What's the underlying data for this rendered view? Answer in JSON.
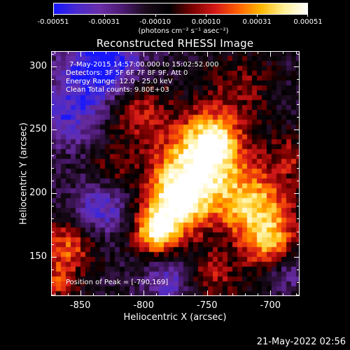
{
  "colorbar": {
    "tick_labels": [
      "-0.00051",
      "-0.00031",
      "-0.00010",
      "0.00010",
      "0.00031",
      "0.00051"
    ],
    "units_text": "(photons cm⁻² s⁻¹ asec⁻²)",
    "gradient": [
      "#1616ff",
      "#4a2acd",
      "#6a2ea8",
      "#4b1a70",
      "#1a0a1a",
      "#000000",
      "#7a0000",
      "#d41818",
      "#ff6000",
      "#ffb800",
      "#fff098",
      "#ffffff"
    ]
  },
  "title": "Reconstructed RHESSI Image",
  "info": {
    "time_range": "7-May-2015 14:57:00.000 to 15:02:52.000",
    "detectors": "Detectors: 3F 5F 6F 7F 8F 9F, Att 0",
    "energy_range": "Energy Range: 12.0 - 25.0 keV",
    "method_counts": "Clean     Total counts: 9.80E+03",
    "peak_position": "Position of Peak = [-790,169]"
  },
  "axes": {
    "xlabel": "Heliocentric X (arcsec)",
    "ylabel": "Heliocentric Y (arcsec)",
    "x_tick_labels": [
      "-850",
      "-800",
      "-750",
      "-700"
    ],
    "y_tick_labels": [
      "300",
      "250",
      "200",
      "150"
    ],
    "xlim": [
      -873,
      -677
    ],
    "ylim": [
      119,
      312
    ],
    "x_ticks": [
      -850,
      -800,
      -750,
      -700
    ],
    "y_ticks": [
      300,
      250,
      200,
      150
    ]
  },
  "timestamp": "21-May-2022 02:56",
  "chart_data": {
    "type": "heatmap",
    "title": "Reconstructed RHESSI Image",
    "xlabel": "Heliocentric X (arcsec)",
    "ylabel": "Heliocentric Y (arcsec)",
    "xlim": [
      -873,
      -677
    ],
    "ylim": [
      119,
      312
    ],
    "value_range": [
      -0.00051,
      0.00051
    ],
    "peak": [
      -790,
      169
    ],
    "sources": [
      {
        "x": -758,
        "y": 218,
        "amp": 1.0,
        "r": 24
      },
      {
        "x": -745,
        "y": 242,
        "amp": 0.85,
        "r": 16
      },
      {
        "x": -776,
        "y": 191,
        "amp": 0.9,
        "r": 18
      },
      {
        "x": -790,
        "y": 169,
        "amp": 1.0,
        "r": 12
      },
      {
        "x": -712,
        "y": 190,
        "amp": 0.9,
        "r": 20
      },
      {
        "x": -700,
        "y": 160,
        "amp": 0.7,
        "r": 15
      },
      {
        "x": -806,
        "y": 266,
        "amp": 0.55,
        "r": 18
      },
      {
        "x": -860,
        "y": 158,
        "amp": 0.65,
        "r": 15
      },
      {
        "x": -868,
        "y": 130,
        "amp": 0.5,
        "r": 10
      },
      {
        "x": -825,
        "y": 220,
        "amp": 0.3,
        "r": 12
      },
      {
        "x": -725,
        "y": 285,
        "amp": 0.35,
        "r": 18
      },
      {
        "x": -685,
        "y": 230,
        "amp": 0.4,
        "r": 12
      },
      {
        "x": -745,
        "y": 135,
        "amp": 0.45,
        "r": 14
      }
    ],
    "negative_sources": [
      {
        "x": -832,
        "y": 300,
        "amp": -0.9,
        "r": 22
      },
      {
        "x": -860,
        "y": 260,
        "amp": -0.5,
        "r": 18
      },
      {
        "x": -833,
        "y": 188,
        "amp": -0.55,
        "r": 16
      },
      {
        "x": -685,
        "y": 140,
        "amp": -0.4,
        "r": 12
      },
      {
        "x": -780,
        "y": 130,
        "amp": -0.5,
        "r": 14
      }
    ]
  }
}
